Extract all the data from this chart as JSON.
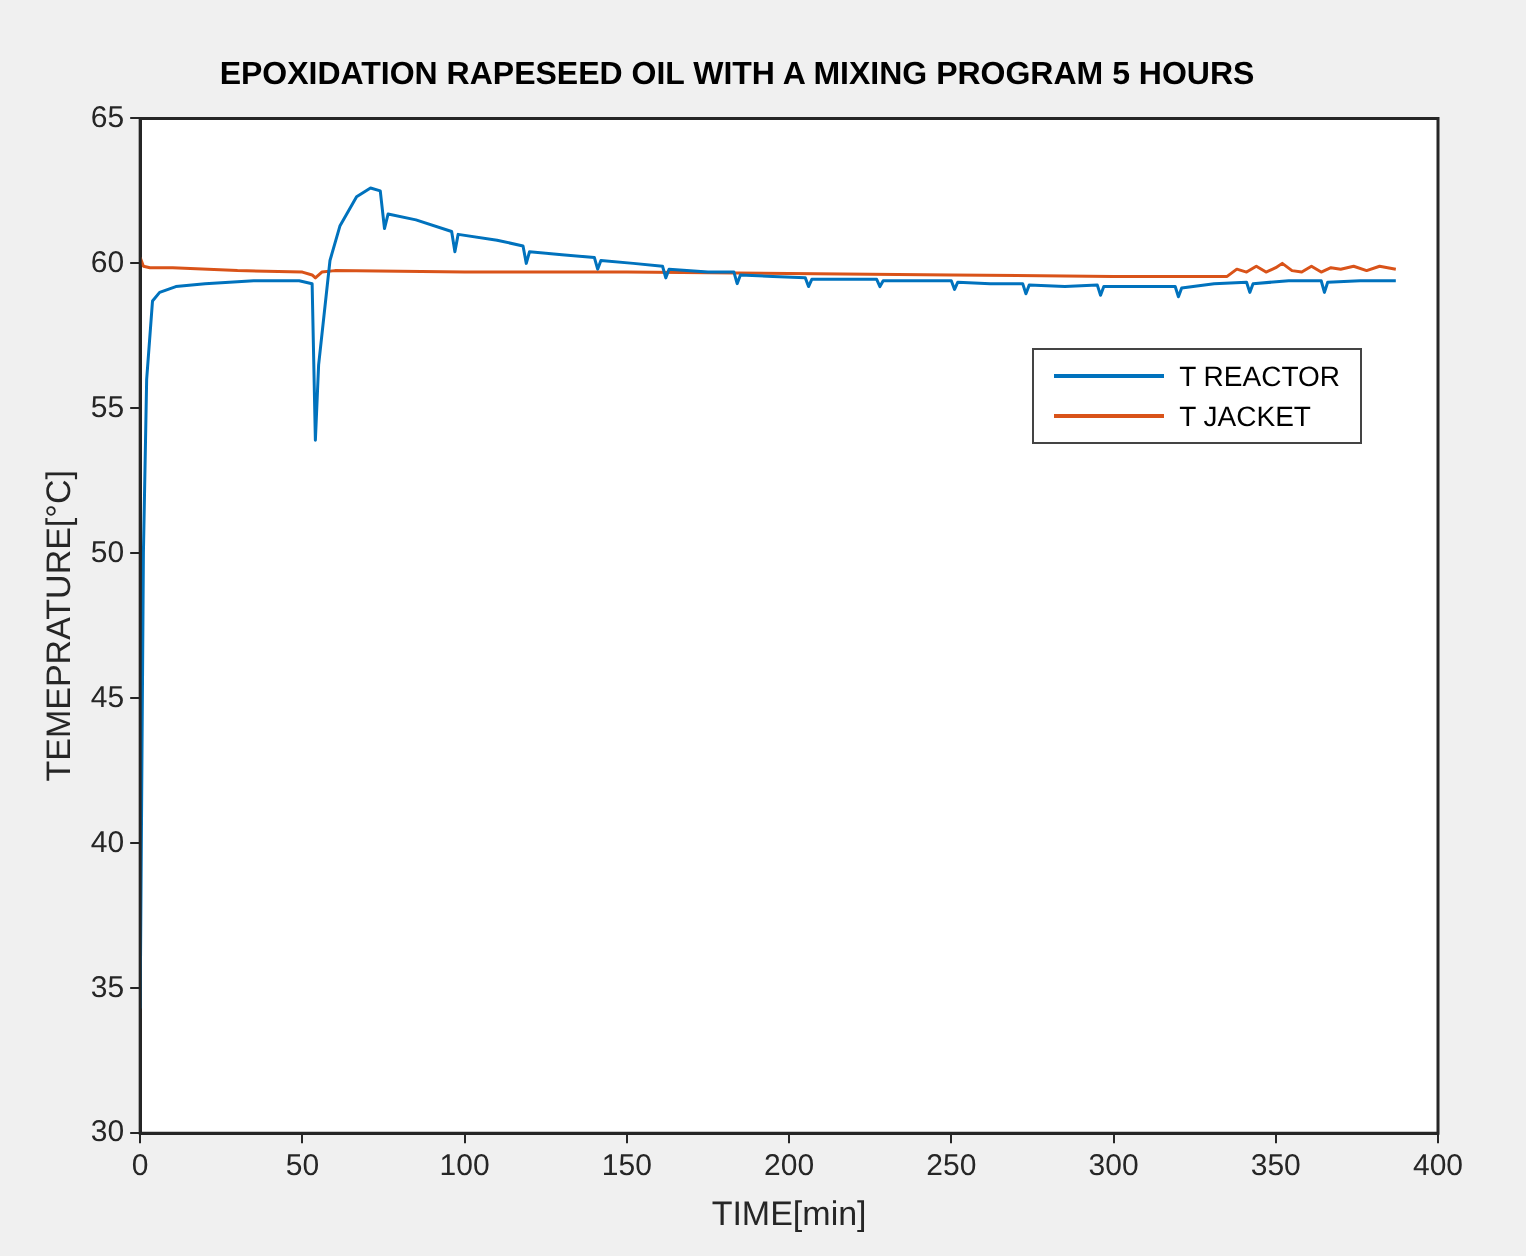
{
  "chart_data": {
    "type": "line",
    "title": "EPOXIDATION RAPESEED OIL WITH A MIXING PROGRAM 5 HOURS",
    "xlabel": "TIME[min]",
    "ylabel": "TEMEPRATURE[°C]",
    "xlim": [
      0,
      400
    ],
    "xticks": [
      0,
      50,
      100,
      150,
      200,
      250,
      300,
      350,
      400
    ],
    "ylim": [
      30,
      65
    ],
    "yticks": [
      30,
      35,
      40,
      45,
      50,
      55,
      60,
      65
    ],
    "grid": false,
    "legend": "top right",
    "marker": "none",
    "line_style": "solid",
    "series": [
      {
        "name": "T REACTOR",
        "color": "#0072bd",
        "x": [
          0,
          1,
          2,
          3.8,
          6,
          11,
          20,
          35,
          49,
          53,
          54,
          55,
          58.5,
          61.6,
          66.7,
          71,
          74,
          75.3,
          76.4,
          85,
          96,
          97,
          98,
          110,
          118,
          119,
          120,
          130,
          140,
          141,
          142,
          152,
          161,
          162,
          163,
          175,
          183,
          184,
          185,
          195,
          205,
          206,
          207,
          217,
          227,
          228,
          229,
          240,
          250,
          251,
          252,
          262,
          272,
          273,
          274,
          285,
          295,
          296,
          297,
          308,
          319,
          320,
          321,
          331,
          341,
          342,
          343,
          354,
          364,
          365,
          366,
          376,
          387
        ],
        "values": [
          34.3,
          50,
          56,
          58.7,
          59,
          59.2,
          59.3,
          59.4,
          59.4,
          59.3,
          53.9,
          56.5,
          60.1,
          61.3,
          62.3,
          62.6,
          62.5,
          61.2,
          61.7,
          61.5,
          61.1,
          60.4,
          61,
          60.8,
          60.6,
          60,
          60.4,
          60.3,
          60.2,
          59.8,
          60.1,
          60,
          59.9,
          59.5,
          59.8,
          59.7,
          59.7,
          59.3,
          59.6,
          59.55,
          59.5,
          59.2,
          59.45,
          59.45,
          59.45,
          59.2,
          59.4,
          59.4,
          59.4,
          59.1,
          59.35,
          59.3,
          59.3,
          58.95,
          59.25,
          59.2,
          59.25,
          58.9,
          59.2,
          59.2,
          59.2,
          58.85,
          59.15,
          59.3,
          59.35,
          59,
          59.3,
          59.4,
          59.4,
          59,
          59.35,
          59.4,
          59.4
        ]
      },
      {
        "name": "T JACKET",
        "color": "#d95319",
        "x": [
          0,
          1,
          3,
          10,
          30,
          50,
          53,
          54,
          56,
          60,
          100,
          150,
          200,
          250,
          300,
          335,
          338,
          341,
          344,
          347,
          350,
          352,
          355,
          358,
          361,
          364,
          367,
          370,
          374,
          378,
          382,
          387
        ],
        "values": [
          60.2,
          59.9,
          59.85,
          59.85,
          59.75,
          59.7,
          59.6,
          59.5,
          59.7,
          59.75,
          59.7,
          59.7,
          59.65,
          59.6,
          59.55,
          59.55,
          59.8,
          59.7,
          59.9,
          59.7,
          59.85,
          60,
          59.75,
          59.7,
          59.9,
          59.7,
          59.85,
          59.8,
          59.9,
          59.75,
          59.9,
          59.8
        ]
      }
    ]
  }
}
